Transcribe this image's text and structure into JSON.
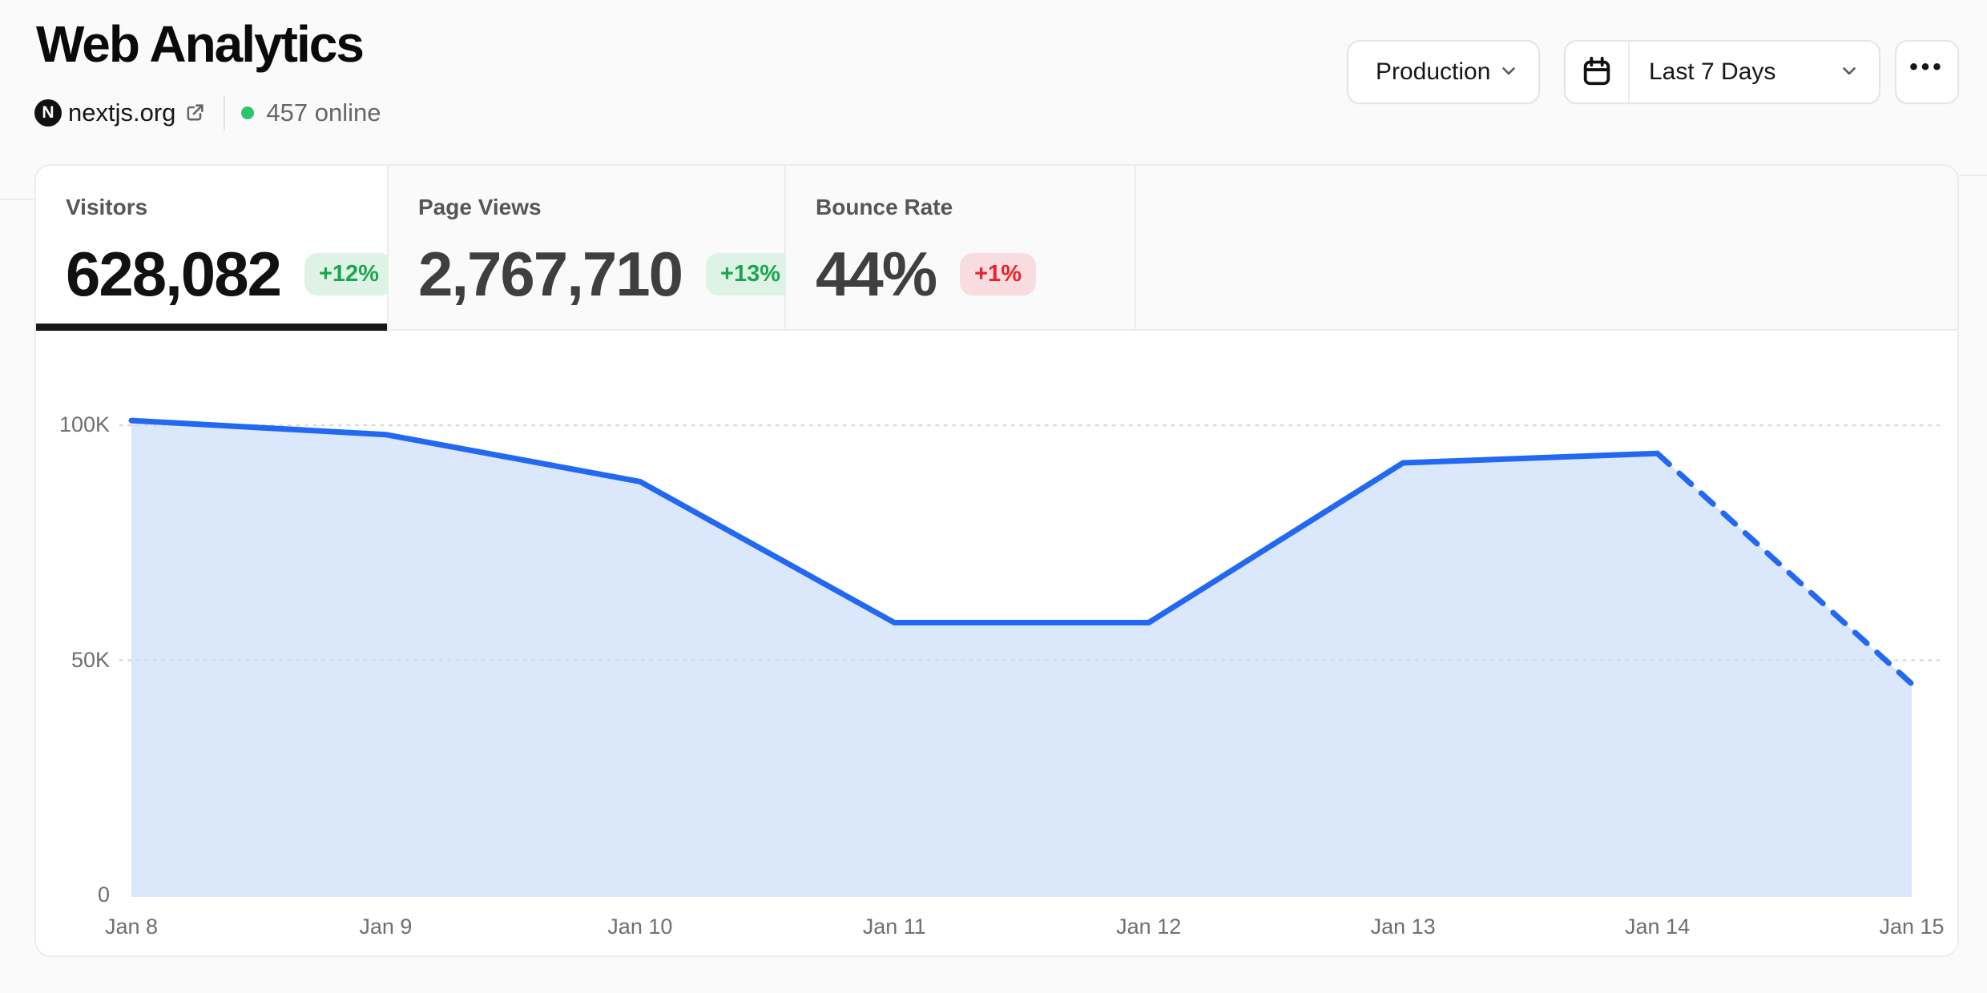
{
  "header": {
    "title": "Web Analytics",
    "site": {
      "name": "nextjs.org",
      "online": "457 online"
    },
    "environment_button": "Production",
    "date_range_button": "Last 7 Days",
    "more_button": "•••"
  },
  "stats": {
    "tabs": [
      {
        "label": "Visitors",
        "value": "628,082",
        "delta": "+12%",
        "direction": "up",
        "active": true
      },
      {
        "label": "Page Views",
        "value": "2,767,710",
        "delta": "+13%",
        "direction": "up",
        "active": false
      },
      {
        "label": "Bounce Rate",
        "value": "44%",
        "delta": "+1%",
        "direction": "down",
        "active": false
      }
    ]
  },
  "colors": {
    "accent_line": "#2368f0",
    "area_fill": "#dbe7fb",
    "grid_line": "#d9d9d9",
    "positive_text": "#1aa64f",
    "positive_bg": "#def3e5",
    "negative_text": "#e5242e",
    "negative_bg": "#f9dcdf",
    "online_dot": "#2bc46d"
  },
  "chart_data": {
    "type": "area",
    "x": [
      "Jan 8",
      "Jan 9",
      "Jan 10",
      "Jan 11",
      "Jan 12",
      "Jan 13",
      "Jan 14",
      "Jan 15"
    ],
    "series": [
      {
        "name": "Visitors",
        "values": [
          101000,
          98000,
          88000,
          58000,
          58000,
          92000,
          94000,
          45000
        ]
      }
    ],
    "projected_last_segment": true,
    "yticks": [
      {
        "value": 0,
        "label": "0"
      },
      {
        "value": 50000,
        "label": "50K"
      },
      {
        "value": 100000,
        "label": "100K"
      }
    ],
    "ylim": [
      0,
      100000
    ],
    "grid": true,
    "legend": false
  }
}
